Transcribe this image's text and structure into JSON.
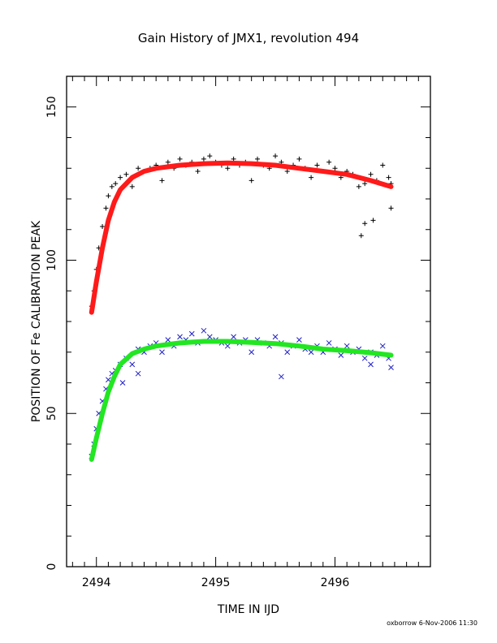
{
  "chart_data": {
    "type": "scatter",
    "title": "Gain History of JMX1, revolution 494",
    "xlabel": "TIME IN IJD",
    "ylabel": "POSITION OF Fe CALIBRATION PEAK",
    "xlim": [
      2493.75,
      2496.8
    ],
    "ylim": [
      0,
      160
    ],
    "xticks": [
      2494,
      2495,
      2496
    ],
    "yticks": [
      0,
      50,
      100,
      150
    ],
    "grid": false,
    "footer": "oxborrow   6-Nov-2006 11:30",
    "series": [
      {
        "marker": "+",
        "color": "#000000",
        "x": [
          2493.96,
          2493.98,
          2494.0,
          2494.02,
          2494.05,
          2494.08,
          2494.1,
          2494.13,
          2494.16,
          2494.2,
          2494.25,
          2494.3,
          2494.35,
          2494.4,
          2494.45,
          2494.5,
          2494.55,
          2494.6,
          2494.65,
          2494.7,
          2494.75,
          2494.8,
          2494.85,
          2494.9,
          2494.95,
          2495.0,
          2495.05,
          2495.1,
          2495.15,
          2495.2,
          2495.25,
          2495.3,
          2495.35,
          2495.4,
          2495.45,
          2495.5,
          2495.55,
          2495.6,
          2495.65,
          2495.7,
          2495.75,
          2495.8,
          2495.85,
          2495.9,
          2495.95,
          2496.0,
          2496.05,
          2496.1,
          2496.15,
          2496.2,
          2496.25,
          2496.3,
          2496.35,
          2496.4,
          2496.45,
          2496.47,
          2496.22,
          2496.25,
          2496.32,
          2496.47
        ],
        "y": [
          85,
          90,
          97,
          104,
          111,
          117,
          121,
          124,
          125,
          127,
          128,
          124,
          130,
          129,
          130,
          131,
          126,
          132,
          130,
          133,
          131,
          132,
          129,
          133,
          134,
          132,
          131,
          130,
          133,
          131,
          132,
          126,
          133,
          131,
          130,
          134,
          132,
          129,
          131,
          133,
          130,
          127,
          131,
          129,
          132,
          130,
          127,
          129,
          128,
          124,
          125,
          128,
          126,
          131,
          127,
          125,
          108,
          112,
          113,
          117
        ]
      },
      {
        "marker": "x",
        "color": "#1f1fc8",
        "x": [
          2493.96,
          2493.98,
          2494.0,
          2494.02,
          2494.05,
          2494.08,
          2494.1,
          2494.13,
          2494.16,
          2494.2,
          2494.25,
          2494.3,
          2494.35,
          2494.4,
          2494.45,
          2494.5,
          2494.55,
          2494.6,
          2494.65,
          2494.7,
          2494.75,
          2494.8,
          2494.85,
          2494.9,
          2494.95,
          2495.0,
          2495.05,
          2495.1,
          2495.15,
          2495.2,
          2495.25,
          2495.3,
          2495.35,
          2495.4,
          2495.45,
          2495.5,
          2495.55,
          2495.6,
          2495.65,
          2495.7,
          2495.75,
          2495.8,
          2495.85,
          2495.9,
          2495.95,
          2496.0,
          2496.05,
          2496.1,
          2496.15,
          2496.2,
          2496.25,
          2496.3,
          2496.35,
          2496.4,
          2496.45,
          2496.47,
          2494.22,
          2494.35,
          2495.55,
          2496.3
        ],
        "y": [
          36,
          40,
          45,
          50,
          54,
          58,
          61,
          63,
          64,
          66,
          68,
          66,
          71,
          70,
          72,
          73,
          70,
          74,
          72,
          75,
          74,
          76,
          73,
          77,
          75,
          74,
          73,
          72,
          75,
          73,
          74,
          70,
          74,
          73,
          72,
          75,
          73,
          70,
          72,
          74,
          71,
          70,
          72,
          70,
          73,
          71,
          69,
          72,
          70,
          71,
          68,
          70,
          69,
          72,
          68,
          65,
          60,
          63,
          62,
          66
        ]
      },
      {
        "name": "",
        "type": "line",
        "color": "#ff1a1a",
        "x": [
          2493.96,
          2494.0,
          2494.05,
          2494.1,
          2494.15,
          2494.2,
          2494.3,
          2494.4,
          2494.5,
          2494.7,
          2494.9,
          2495.1,
          2495.3,
          2495.5,
          2495.7,
          2495.9,
          2496.1,
          2496.3,
          2496.47
        ],
        "y": [
          83,
          93,
          104,
          113,
          119,
          123,
          127,
          129,
          130,
          131,
          131.5,
          131.7,
          131.5,
          131,
          130,
          129,
          128,
          126,
          124
        ]
      },
      {
        "name": "",
        "type": "line",
        "color": "#22e622",
        "x": [
          2493.96,
          2494.0,
          2494.05,
          2494.1,
          2494.15,
          2494.2,
          2494.3,
          2494.4,
          2494.5,
          2494.7,
          2494.9,
          2495.1,
          2495.3,
          2495.5,
          2495.7,
          2495.9,
          2496.1,
          2496.3,
          2496.47
        ],
        "y": [
          35,
          42,
          50,
          57,
          62,
          66,
          69.5,
          71,
          72,
          73,
          73.5,
          73.5,
          73.2,
          72.8,
          72,
          71,
          70.5,
          69.8,
          69
        ]
      }
    ]
  }
}
